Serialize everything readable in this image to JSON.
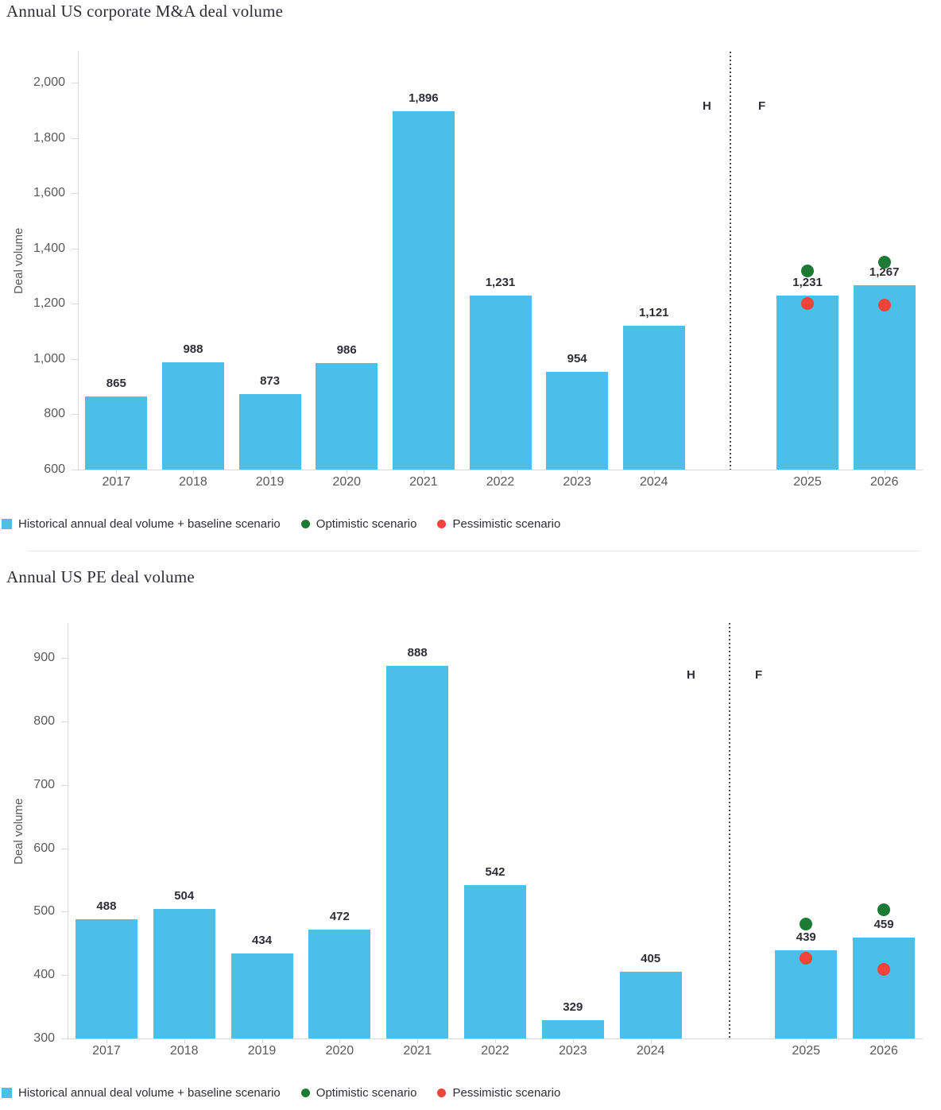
{
  "page": {
    "background": "#ffffff"
  },
  "colors": {
    "bar": "#4CBFE8",
    "optimistic": "#1B7A33",
    "pessimistic": "#F0443A",
    "axis": "#D9D9D9",
    "tick_text": "#595959",
    "value_text": "#2E2E38",
    "divider_dots": "#4A4A4A",
    "separator": "#E6E6E6",
    "title_text": "#2E2E38",
    "legend_text": "#2E2E38"
  },
  "charts": [
    {
      "title": "Annual US corporate M&A deal volume",
      "chart_data": {
        "type": "bar",
        "categories": [
          "2017",
          "2018",
          "2019",
          "2020",
          "2021",
          "2022",
          "2023",
          "2024",
          "2025",
          "2026"
        ],
        "series": [
          {
            "name": "Historical annual deal volume + baseline scenario",
            "values": [
              865,
              988,
              873,
              986,
              1896,
              1231,
              954,
              1121,
              1231,
              1267
            ],
            "labels": [
              "865",
              "988",
              "873",
              "986",
              "1,896",
              "1,231",
              "954",
              "1,121",
              "1,231",
              "1,267"
            ]
          },
          {
            "name": "Optimistic scenario",
            "values": [
              null,
              null,
              null,
              null,
              null,
              null,
              null,
              null,
              1320,
              1350
            ],
            "note": "dot values estimated from axis scale"
          },
          {
            "name": "Pessimistic scenario",
            "values": [
              null,
              null,
              null,
              null,
              null,
              null,
              null,
              null,
              1202,
              1195
            ],
            "note": "dot values estimated from axis scale"
          }
        ],
        "xlabel": "",
        "ylabel": "Deal volume",
        "ylim": [
          600,
          2000
        ],
        "ytick_step": 200,
        "grid": false,
        "legend_position": "bottom",
        "history_label": "H",
        "forecast_label": "F",
        "forecast_categories": [
          "2025",
          "2026"
        ]
      }
    },
    {
      "title": "Annual US PE deal volume",
      "chart_data": {
        "type": "bar",
        "categories": [
          "2017",
          "2018",
          "2019",
          "2020",
          "2021",
          "2022",
          "2023",
          "2024",
          "2025",
          "2026"
        ],
        "series": [
          {
            "name": "Historical annual deal volume + baseline scenario",
            "values": [
              488,
              504,
              434,
              472,
              888,
              542,
              329,
              405,
              439,
              459
            ],
            "labels": [
              "488",
              "504",
              "434",
              "472",
              "888",
              "542",
              "329",
              "405",
              "439",
              "459"
            ]
          },
          {
            "name": "Optimistic scenario",
            "values": [
              null,
              null,
              null,
              null,
              null,
              null,
              null,
              null,
              480,
              503
            ],
            "note": "dot values estimated from axis scale"
          },
          {
            "name": "Pessimistic scenario",
            "values": [
              null,
              null,
              null,
              null,
              null,
              null,
              null,
              null,
              427,
              409
            ],
            "note": "dot values estimated from axis scale"
          }
        ],
        "xlabel": "",
        "ylabel": "Deal volume",
        "ylim": [
          300,
          900
        ],
        "ytick_step": 100,
        "grid": false,
        "legend_position": "bottom",
        "history_label": "H",
        "forecast_label": "F",
        "forecast_categories": [
          "2025",
          "2026"
        ]
      }
    }
  ]
}
